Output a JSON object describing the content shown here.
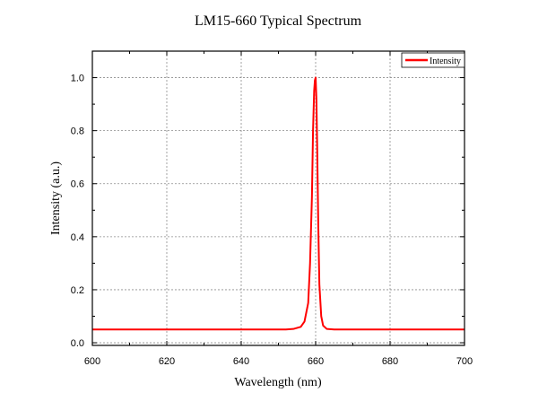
{
  "chart_data": {
    "type": "line",
    "title": "LM15-660 Typical Spectrum",
    "xlabel": "Wavelength (nm)",
    "ylabel": "Intensity (a.u.)",
    "xlim": [
      600,
      700
    ],
    "ylim": [
      -0.01,
      1.1
    ],
    "xticks": [
      600,
      620,
      640,
      660,
      680,
      700
    ],
    "yticks": [
      0.0,
      0.2,
      0.4,
      0.6,
      0.8,
      1.0
    ],
    "xtick_labels": [
      "600",
      "620",
      "640",
      "660",
      "680",
      "700"
    ],
    "ytick_labels": [
      "0.0",
      "0.2",
      "0.4",
      "0.6",
      "0.8",
      "1.0"
    ],
    "grid": true,
    "legend_position": "top-right",
    "line_color": "#ff0000",
    "series": [
      {
        "name": "Intensity",
        "x": [
          600,
          605,
          610,
          615,
          620,
          625,
          630,
          635,
          640,
          645,
          650,
          652,
          654,
          656,
          657,
          658,
          658.5,
          659,
          659.3,
          659.6,
          659.8,
          660,
          660.2,
          660.4,
          660.7,
          661,
          661.5,
          662,
          663,
          665,
          670,
          675,
          680,
          685,
          690,
          695,
          700
        ],
        "y": [
          0.05,
          0.05,
          0.05,
          0.05,
          0.05,
          0.05,
          0.05,
          0.05,
          0.05,
          0.05,
          0.05,
          0.05,
          0.052,
          0.06,
          0.08,
          0.15,
          0.3,
          0.55,
          0.8,
          0.95,
          0.99,
          1.0,
          0.92,
          0.75,
          0.45,
          0.22,
          0.1,
          0.065,
          0.052,
          0.05,
          0.05,
          0.05,
          0.05,
          0.05,
          0.05,
          0.05,
          0.05
        ]
      }
    ]
  }
}
